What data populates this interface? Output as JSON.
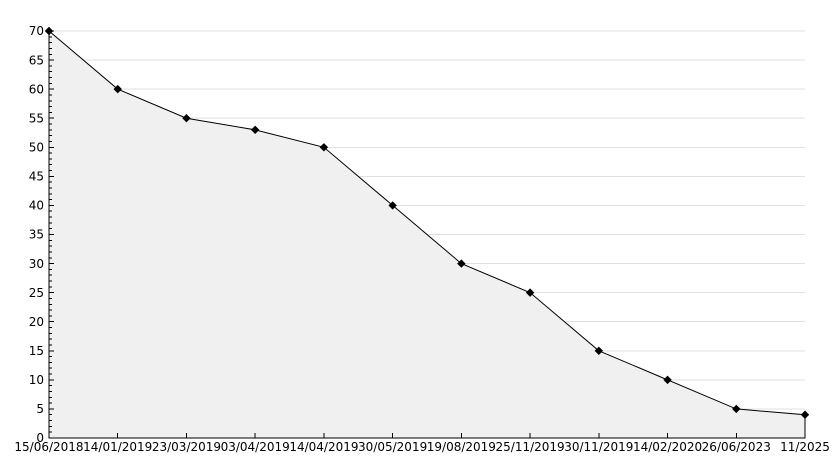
{
  "chart_data": {
    "type": "area",
    "title": "",
    "xlabel": "",
    "ylabel": "",
    "categories": [
      "15/06/2018",
      "14/01/2019",
      "23/03/2019",
      "03/04/2019",
      "14/04/2019",
      "30/05/2019",
      "19/08/2019",
      "25/11/2019",
      "30/11/2019",
      "14/02/2020",
      "26/06/2023",
      "11/2025"
    ],
    "values": [
      70,
      60,
      55,
      53,
      50,
      40,
      30,
      25,
      15,
      10,
      5,
      4
    ],
    "ylim": [
      0,
      70
    ],
    "y_major_step": 5,
    "y_minor_step": 1,
    "grid": true,
    "legend": "none",
    "marker": "diamond",
    "colors": {
      "line": "#000000",
      "fill": "#f0f0f0",
      "grid": "#e0e0e0",
      "axis": "#000000",
      "text": "#000000",
      "background": "#ffffff"
    }
  }
}
